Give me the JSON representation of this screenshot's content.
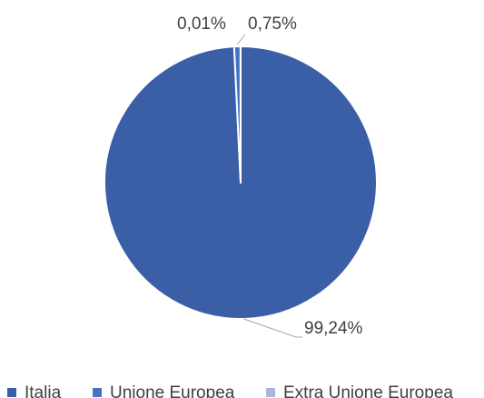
{
  "chart_data": {
    "type": "pie",
    "title": "",
    "categories": [
      "Italia",
      "Unione Europea",
      "Extra Unione Europea"
    ],
    "values": [
      99.24,
      0.75,
      0.01
    ],
    "data_labels": [
      "99,24%",
      "0,75%",
      "0,01%"
    ],
    "colors": [
      "#3a5fa6",
      "#4472c4",
      "#a9b8da"
    ],
    "start_angle_deg": 0,
    "direction": "clockwise",
    "legend_position": "bottom"
  }
}
